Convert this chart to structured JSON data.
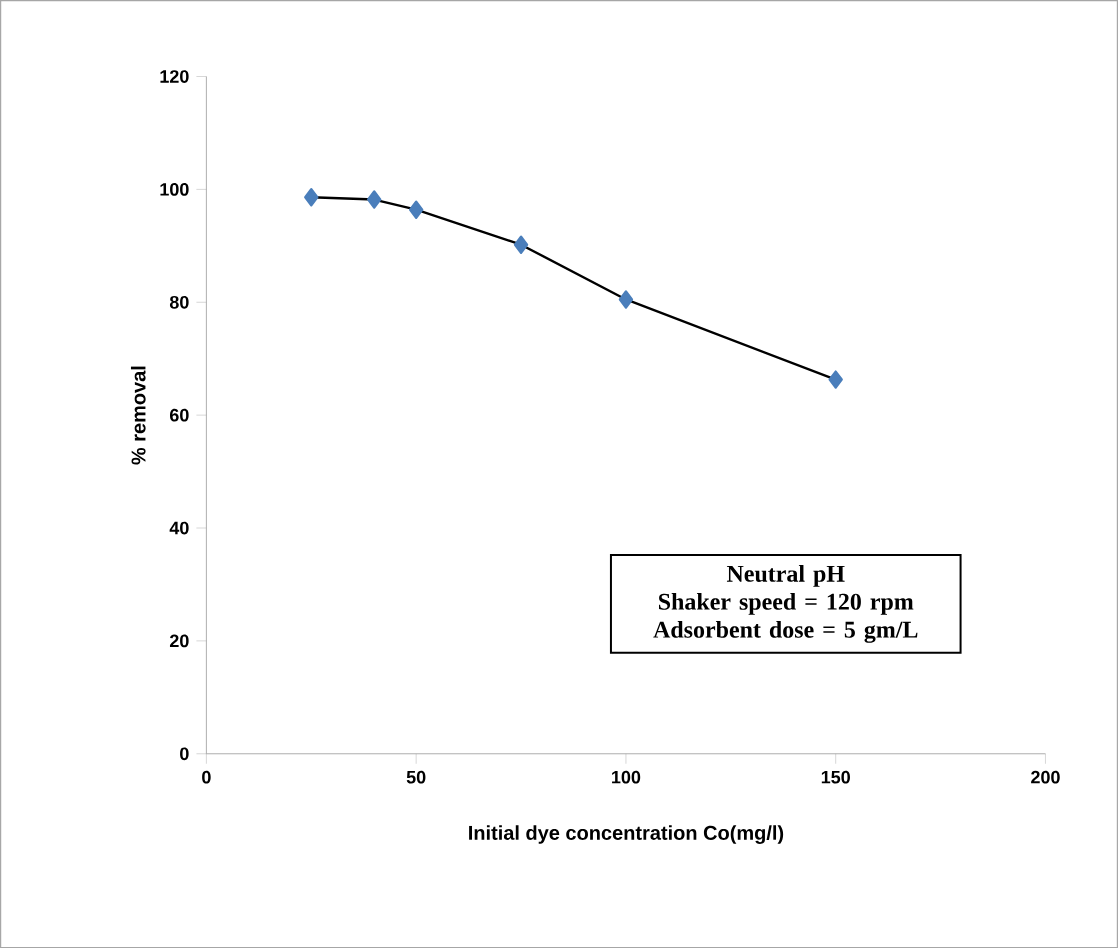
{
  "chart_data": {
    "type": "line",
    "xlabel": "Initial dye concentration Co(mg/l)",
    "ylabel": "% removal",
    "x": [
      25,
      40,
      50,
      75,
      100,
      150
    ],
    "series": [
      {
        "color": "#4a7ebb",
        "values": [
          98.6,
          98.2,
          96.4,
          90.2,
          80.5,
          66.3
        ]
      }
    ],
    "xlim": [
      0,
      200
    ],
    "xticks": [
      0,
      50,
      100,
      150,
      200
    ],
    "ylim": [
      0,
      120
    ],
    "yticks": [
      0,
      20,
      40,
      60,
      80,
      100,
      120
    ],
    "marker": "diamond",
    "line_style": "solid",
    "grid": false,
    "annotations": [
      "Neutral pH",
      "Shaker speed = 120 rpm",
      "Adsorbent dose = 5 gm/L"
    ]
  }
}
